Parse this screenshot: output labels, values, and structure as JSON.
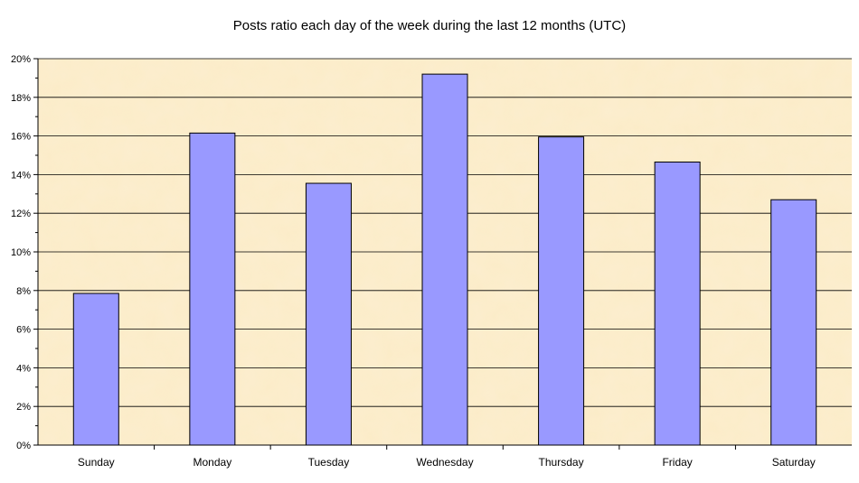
{
  "chart_data": {
    "type": "bar",
    "title": "Posts ratio each day of the week during the last 12 months (UTC)",
    "categories": [
      "Sunday",
      "Monday",
      "Tuesday",
      "Wednesday",
      "Thursday",
      "Friday",
      "Saturday"
    ],
    "values": [
      7.85,
      16.15,
      13.55,
      19.2,
      15.95,
      14.65,
      12.7
    ],
    "value_format": "percent",
    "ylim": [
      0,
      20
    ],
    "yticks": [
      0,
      2,
      4,
      6,
      8,
      10,
      12,
      14,
      16,
      18,
      20
    ],
    "ytick_labels": [
      "0%",
      "2%",
      "4%",
      "6%",
      "8%",
      "10%",
      "12%",
      "14%",
      "16%",
      "18%",
      "20%"
    ],
    "grid": true,
    "legend": "none",
    "colors": {
      "bar_fill": "#9999ff",
      "bar_stroke": "#000000",
      "plot_background": "#fcecc8",
      "gridline": "#000000"
    }
  }
}
